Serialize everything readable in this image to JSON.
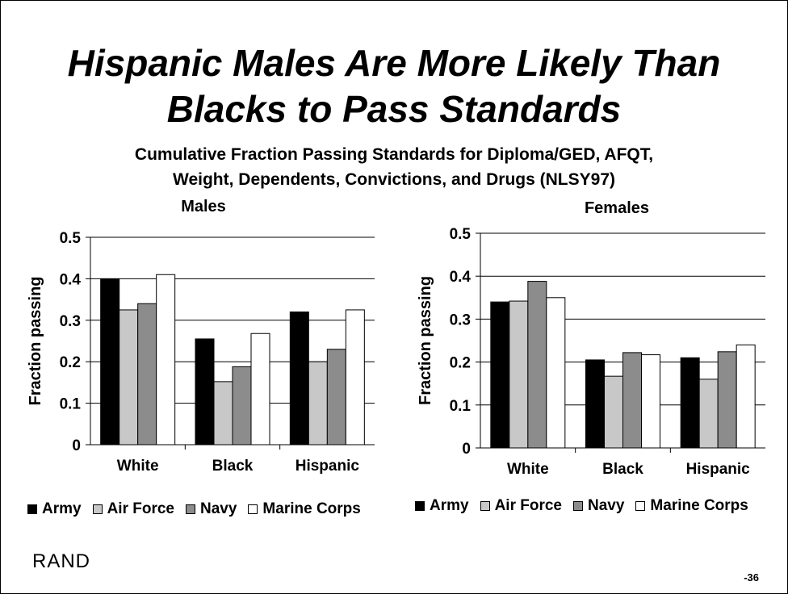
{
  "title_lines": [
    "Hispanic Males Are More Likely Than",
    "Blacks to Pass Standards"
  ],
  "subtitle_lines": [
    "Cumulative Fraction Passing Standards for Diploma/GED, AFQT,",
    "Weight, Dependents, Convictions, and Drugs (NLSY97)"
  ],
  "logo": "RAND",
  "page_number": "-36",
  "series_colors": {
    "Army": "#000000",
    "Air Force": "#c8c8c8",
    "Navy": "#8c8c8c",
    "Marine Corps": "#ffffff"
  },
  "legend": [
    {
      "label": "Army",
      "color": "#000000"
    },
    {
      "label": "Air Force",
      "color": "#c8c8c8"
    },
    {
      "label": "Navy",
      "color": "#8c8c8c"
    },
    {
      "label": "Marine Corps",
      "color": "#ffffff"
    }
  ],
  "chart_data": [
    {
      "type": "bar",
      "title": "Males",
      "ylabel": "Fraction passing",
      "xlabel": "",
      "ylim": [
        0,
        0.5
      ],
      "yticks": [
        "0",
        "0.1",
        "0.2",
        "0.3",
        "0.4",
        "0.5"
      ],
      "grid": true,
      "legend_position": "bottom",
      "categories": [
        "White",
        "Black",
        "Hispanic"
      ],
      "series": [
        {
          "name": "Army",
          "values": [
            0.4,
            0.255,
            0.32
          ]
        },
        {
          "name": "Air Force",
          "values": [
            0.325,
            0.152,
            0.2
          ]
        },
        {
          "name": "Navy",
          "values": [
            0.34,
            0.188,
            0.23
          ]
        },
        {
          "name": "Marine Corps",
          "values": [
            0.41,
            0.268,
            0.325
          ]
        }
      ]
    },
    {
      "type": "bar",
      "title": "Females",
      "ylabel": "Fraction passing",
      "xlabel": "",
      "ylim": [
        0,
        0.5
      ],
      "yticks": [
        "0",
        "0.1",
        "0.2",
        "0.3",
        "0.4",
        "0.5"
      ],
      "grid": true,
      "legend_position": "bottom",
      "categories": [
        "White",
        "Black",
        "Hispanic"
      ],
      "series": [
        {
          "name": "Army",
          "values": [
            0.34,
            0.205,
            0.21
          ]
        },
        {
          "name": "Air Force",
          "values": [
            0.342,
            0.167,
            0.16
          ]
        },
        {
          "name": "Navy",
          "values": [
            0.388,
            0.222,
            0.224
          ]
        },
        {
          "name": "Marine Corps",
          "values": [
            0.35,
            0.217,
            0.24
          ]
        }
      ]
    }
  ]
}
